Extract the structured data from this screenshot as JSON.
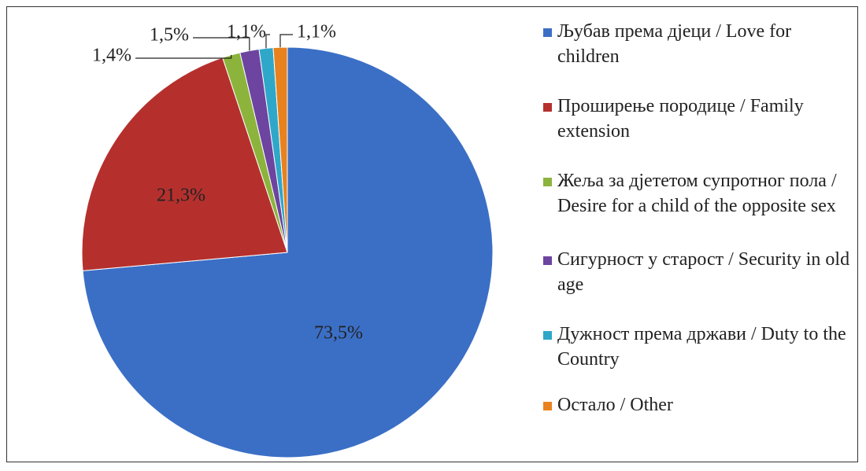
{
  "chart_data": {
    "type": "pie",
    "categories": [
      "Љубав према дјеци / Love for children",
      "Проширење породице / Family extension",
      "Жеља за дјететом супротног пола / Desire for a child of the opposite sex",
      "Сигурност у старост / Security in old age",
      "Дужност према држави / Duty to the Country",
      "Остало / Other"
    ],
    "values": [
      73.5,
      21.3,
      1.4,
      1.5,
      1.1,
      1.1
    ],
    "value_labels": [
      "73,5%",
      "21,3%",
      "1,4%",
      "1,5%",
      "1,1%",
      "1,1%"
    ],
    "colors": [
      "#3b6fc6",
      "#b5302d",
      "#8cb43c",
      "#6d44a0",
      "#2fa7c9",
      "#e8821f"
    ],
    "legend": "right"
  }
}
